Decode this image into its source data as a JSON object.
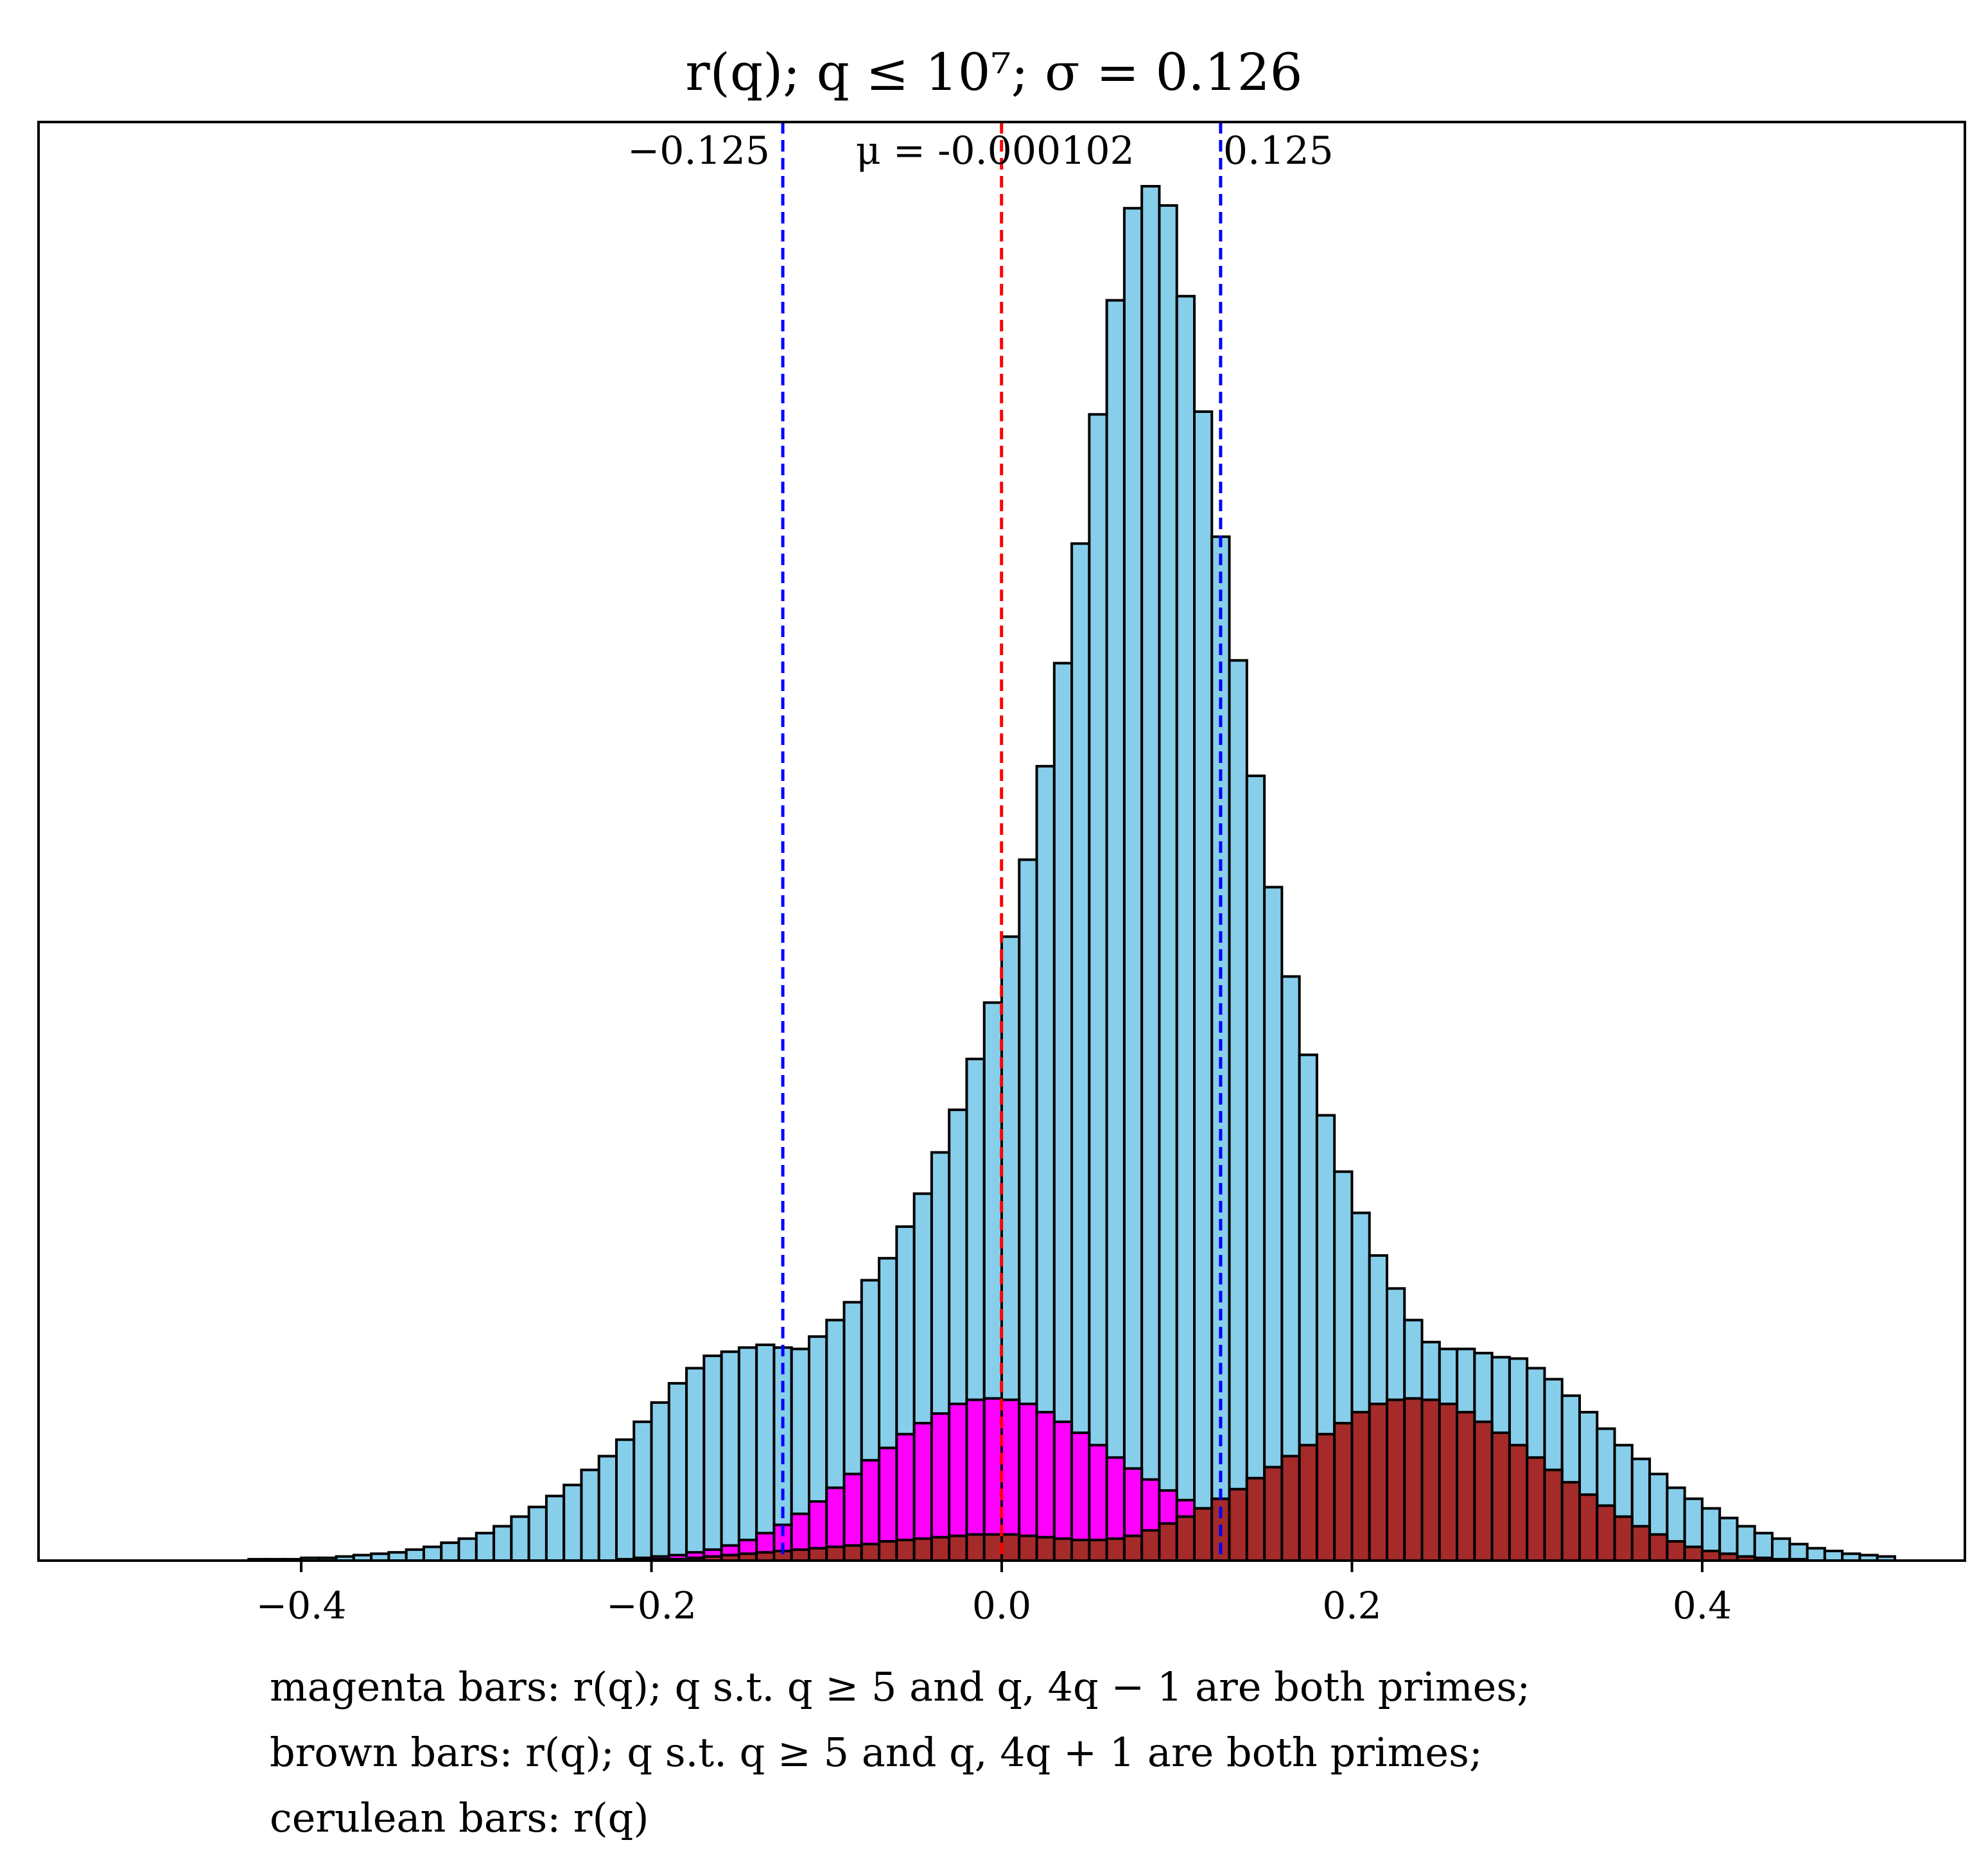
{
  "chart_data": {
    "type": "bar",
    "title": "r(q); q ≤ 10⁷; σ = 0.126",
    "xlabel": "",
    "ylabel": "",
    "xlim": [
      -0.55,
      0.55
    ],
    "ylim": [
      0,
      1.0
    ],
    "y_units": "relative count (y-axis unlabeled)",
    "x_ticks": [
      {
        "value": -0.4,
        "label": "−0.4"
      },
      {
        "value": -0.2,
        "label": "−0.2"
      },
      {
        "value": 0.0,
        "label": "0.0"
      },
      {
        "value": 0.2,
        "label": "0.2"
      },
      {
        "value": 0.4,
        "label": "0.4"
      }
    ],
    "bin_start": -0.5,
    "bin_width": 0.01,
    "series": [
      {
        "key": "cerulean",
        "color": "#87ceeb",
        "values": [
          0.0,
          0.0,
          0.0,
          0.0,
          0.0,
          0.0,
          0.0,
          0.001,
          0.001,
          0.001,
          0.002,
          0.002,
          0.003,
          0.004,
          0.005,
          0.006,
          0.008,
          0.01,
          0.013,
          0.016,
          0.02,
          0.025,
          0.032,
          0.039,
          0.047,
          0.055,
          0.066,
          0.076,
          0.088,
          0.101,
          0.115,
          0.129,
          0.14,
          0.149,
          0.152,
          0.155,
          0.157,
          0.155,
          0.154,
          0.163,
          0.175,
          0.188,
          0.204,
          0.22,
          0.243,
          0.267,
          0.297,
          0.328,
          0.365,
          0.406,
          0.454,
          0.51,
          0.578,
          0.653,
          0.74,
          0.834,
          0.917,
          0.984,
          1.0,
          0.986,
          0.92,
          0.836,
          0.745,
          0.655,
          0.571,
          0.49,
          0.425,
          0.368,
          0.324,
          0.283,
          0.253,
          0.222,
          0.198,
          0.175,
          0.159,
          0.154,
          0.154,
          0.151,
          0.148,
          0.147,
          0.14,
          0.132,
          0.12,
          0.108,
          0.096,
          0.084,
          0.074,
          0.063,
          0.053,
          0.045,
          0.038,
          0.031,
          0.025,
          0.02,
          0.016,
          0.012,
          0.009,
          0.007,
          0.005,
          0.004,
          0.003
        ]
      },
      {
        "key": "magenta",
        "color": "#ff00ff",
        "values": [
          0.0,
          0.0,
          0.0,
          0.0,
          0.0,
          0.0,
          0.0,
          0.0,
          0.0,
          0.0,
          0.0,
          0.0,
          0.0,
          0.0,
          0.0,
          0.0,
          0.0,
          0.0,
          0.0,
          0.0,
          0.0,
          0.0,
          0.0,
          0.0,
          0.0,
          0.0,
          0.0,
          0.0,
          0.001,
          0.002,
          0.003,
          0.004,
          0.006,
          0.008,
          0.011,
          0.015,
          0.02,
          0.026,
          0.034,
          0.043,
          0.053,
          0.063,
          0.073,
          0.082,
          0.092,
          0.1,
          0.107,
          0.114,
          0.117,
          0.118,
          0.117,
          0.114,
          0.108,
          0.101,
          0.093,
          0.084,
          0.075,
          0.067,
          0.059,
          0.051,
          0.044,
          0.038,
          0.032,
          0.027,
          0.022,
          0.018,
          0.014,
          0.011,
          0.008,
          0.006,
          0.004,
          0.003,
          0.002,
          0.001,
          0.001,
          0.0,
          0.0,
          0.0,
          0.0,
          0.0,
          0.0,
          0.0,
          0.0,
          0.0,
          0.0,
          0.0,
          0.0,
          0.0,
          0.0,
          0.0,
          0.0,
          0.0,
          0.0,
          0.0,
          0.0,
          0.0,
          0.0,
          0.0,
          0.0,
          0.0,
          0.0
        ]
      },
      {
        "key": "brown",
        "color": "#a52a2a",
        "values": [
          0.0,
          0.0,
          0.0,
          0.0,
          0.0,
          0.0,
          0.0,
          0.0,
          0.0,
          0.0,
          0.0,
          0.0,
          0.0,
          0.0,
          0.0,
          0.0,
          0.0,
          0.0,
          0.0,
          0.0,
          0.0,
          0.0,
          0.0,
          0.0,
          0.0,
          0.0,
          0.0,
          0.0,
          0.0,
          0.001,
          0.001,
          0.001,
          0.002,
          0.003,
          0.004,
          0.005,
          0.006,
          0.007,
          0.008,
          0.009,
          0.01,
          0.011,
          0.012,
          0.014,
          0.015,
          0.016,
          0.017,
          0.018,
          0.019,
          0.019,
          0.019,
          0.018,
          0.017,
          0.016,
          0.015,
          0.015,
          0.016,
          0.018,
          0.022,
          0.027,
          0.032,
          0.038,
          0.045,
          0.052,
          0.06,
          0.068,
          0.076,
          0.084,
          0.092,
          0.1,
          0.108,
          0.114,
          0.117,
          0.118,
          0.117,
          0.114,
          0.108,
          0.101,
          0.093,
          0.084,
          0.075,
          0.066,
          0.057,
          0.048,
          0.04,
          0.032,
          0.025,
          0.019,
          0.014,
          0.01,
          0.007,
          0.005,
          0.003,
          0.002,
          0.001,
          0.001,
          0.0,
          0.0,
          0.0,
          0.0,
          0.0
        ]
      }
    ],
    "vertical_lines": [
      {
        "x": -0.125,
        "color": "#0000ff",
        "style": "dashed",
        "label": "−0.125"
      },
      {
        "x": 0.125,
        "color": "#0000ff",
        "style": "dashed",
        "label": "0.125"
      },
      {
        "x": -0.000102,
        "color": "#ff0000",
        "style": "dashed",
        "label": "μ = -0.000102"
      }
    ],
    "grid": false,
    "legend": "none",
    "caption": [
      "magenta bars: r(q); q s.t. q ≥ 5 and q, 4q − 1 are both primes;",
      "brown bars: r(q); q s.t. q ≥ 5 and q, 4q + 1 are both primes;",
      "cerulean bars: r(q)"
    ]
  }
}
